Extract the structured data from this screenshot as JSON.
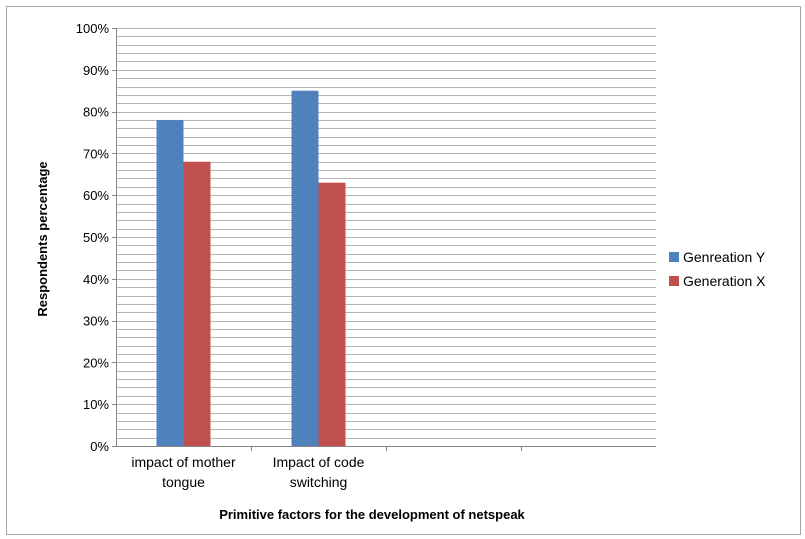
{
  "chart_data": {
    "type": "bar",
    "categories": [
      [
        "impact of mother",
        "tongue"
      ],
      [
        "Impact of code",
        "switching"
      ],
      [
        "",
        ""
      ],
      [
        "",
        ""
      ]
    ],
    "series": [
      {
        "name": "Genreation Y",
        "color": "#4f81bd",
        "values": [
          78,
          85,
          null,
          null
        ]
      },
      {
        "name": "Generation X",
        "color": "#c0504d",
        "values": [
          68,
          63,
          null,
          null
        ]
      }
    ],
    "ylim": [
      0,
      100
    ],
    "yticks": [
      "0%",
      "10%",
      "20%",
      "30%",
      "40%",
      "50%",
      "60%",
      "70%",
      "80%",
      "90%",
      "100%"
    ],
    "ylabel": "Respondents percentage",
    "xlabel": "Primitive factors for the development of netspeak",
    "grid": true,
    "legend_position": "right"
  }
}
